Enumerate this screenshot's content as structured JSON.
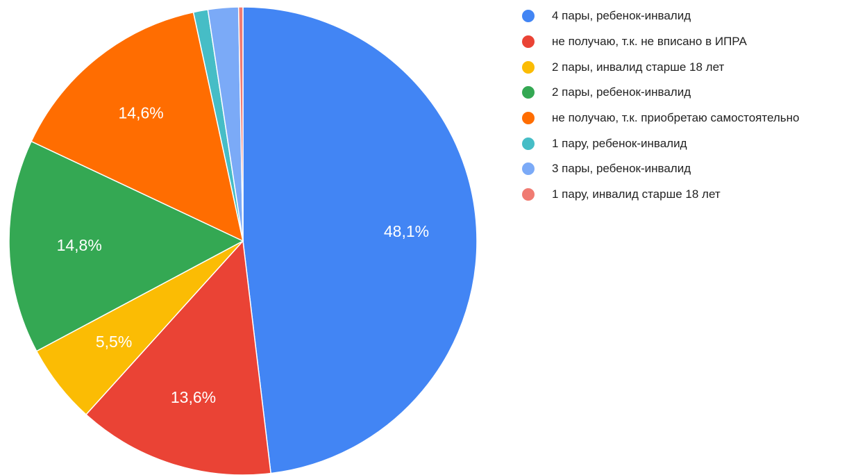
{
  "chart_data": {
    "type": "pie",
    "start_angle_deg": 0,
    "direction": "clockwise",
    "legend_position": "right",
    "slices": [
      {
        "label": "4 пары, ребенок-инвалид",
        "value": 48.1,
        "display": "48,1%",
        "color": "#4285f4"
      },
      {
        "label": "не получаю, т.к. не вписано в ИПРА",
        "value": 13.6,
        "display": "13,6%",
        "color": "#ea4335"
      },
      {
        "label": "2 пары, инвалид старше 18 лет",
        "value": 5.5,
        "display": "5,5%",
        "color": "#fbbc04"
      },
      {
        "label": "2 пары, ребенок-инвалид",
        "value": 14.8,
        "display": "14,8%",
        "color": "#34a853"
      },
      {
        "label": "не получаю, т.к. приобретаю самостоятельно",
        "value": 14.6,
        "display": "14,6%",
        "color": "#ff6d01"
      },
      {
        "label": "1 пару, ребенок-инвалид",
        "value": 1.0,
        "display": "",
        "color": "#46bdc6"
      },
      {
        "label": "3 пары, ребенок-инвалид",
        "value": 2.1,
        "display": "",
        "color": "#7baaf7"
      },
      {
        "label": "1 пару, инвалид старше 18 лет",
        "value": 0.3,
        "display": "",
        "color": "#f07b72"
      }
    ]
  }
}
